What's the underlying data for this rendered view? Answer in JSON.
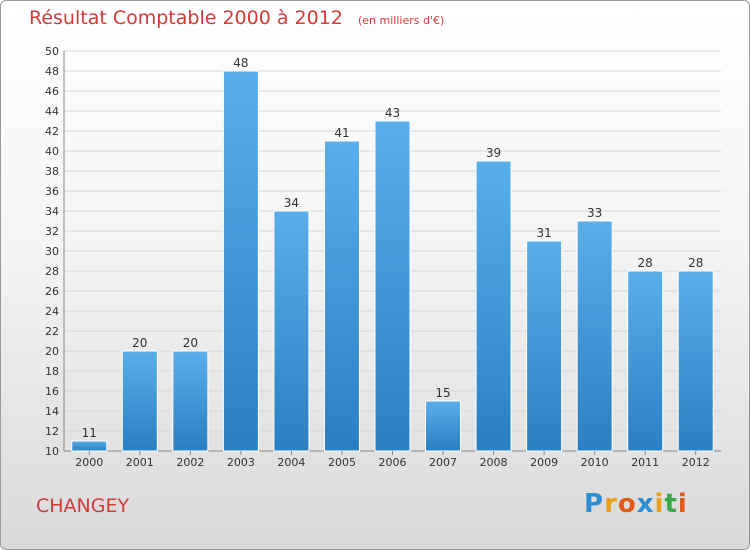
{
  "title": "Résultat Comptable 2000 à 2012",
  "subtitle": "(en milliers d'€)",
  "commune": "CHANGEY",
  "logo": {
    "letters": [
      "P",
      "r",
      "o",
      "x",
      "i",
      "t",
      "i"
    ],
    "colors": [
      "#2b8fd6",
      "#e8a21a",
      "#e05a1c",
      "#2b8fd6",
      "#e8a21a",
      "#3aa84a",
      "#e05a1c"
    ]
  },
  "colors": {
    "title": "#d23a3a",
    "bar_light": "#5aaeea",
    "bar_dark": "#2a7fc2"
  },
  "chart_data": {
    "type": "bar",
    "categories": [
      "2000",
      "2001",
      "2002",
      "2003",
      "2004",
      "2005",
      "2006",
      "2007",
      "2008",
      "2009",
      "2010",
      "2011",
      "2012"
    ],
    "values": [
      11,
      20,
      20,
      48,
      34,
      41,
      43,
      15,
      39,
      31,
      33,
      28,
      28
    ],
    "title": "Résultat Comptable 2000 à 2012",
    "subtitle": "(en milliers d'€)",
    "xlabel": "",
    "ylabel": "",
    "ylim": [
      10,
      50
    ],
    "yticks": [
      10,
      12,
      14,
      16,
      18,
      20,
      22,
      24,
      26,
      28,
      30,
      32,
      34,
      36,
      38,
      40,
      42,
      44,
      46,
      48,
      50
    ],
    "grid": true
  }
}
